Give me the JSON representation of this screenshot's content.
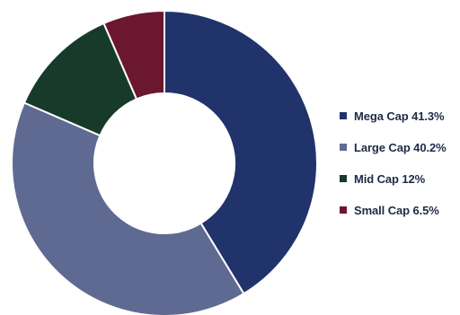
{
  "chart_data": {
    "type": "pie",
    "donut": true,
    "series": [
      {
        "name": "Mega Cap",
        "value": 41.3,
        "color": "#21336b"
      },
      {
        "name": "Large Cap",
        "value": 40.2,
        "color": "#5f6a92"
      },
      {
        "name": "Mid Cap",
        "value": 12,
        "color": "#173a2a"
      },
      {
        "name": "Small Cap",
        "value": 6.5,
        "color": "#6b1730"
      }
    ],
    "legend_position": "right",
    "legend": [
      {
        "label": "Mega Cap 41.3%",
        "color": "#21336b"
      },
      {
        "label": "Large Cap 40.2%",
        "color": "#5f6a92"
      },
      {
        "label": "Mid Cap 12%",
        "color": "#173a2a"
      },
      {
        "label": "Small Cap 6.5%",
        "color": "#6b1730"
      }
    ]
  }
}
